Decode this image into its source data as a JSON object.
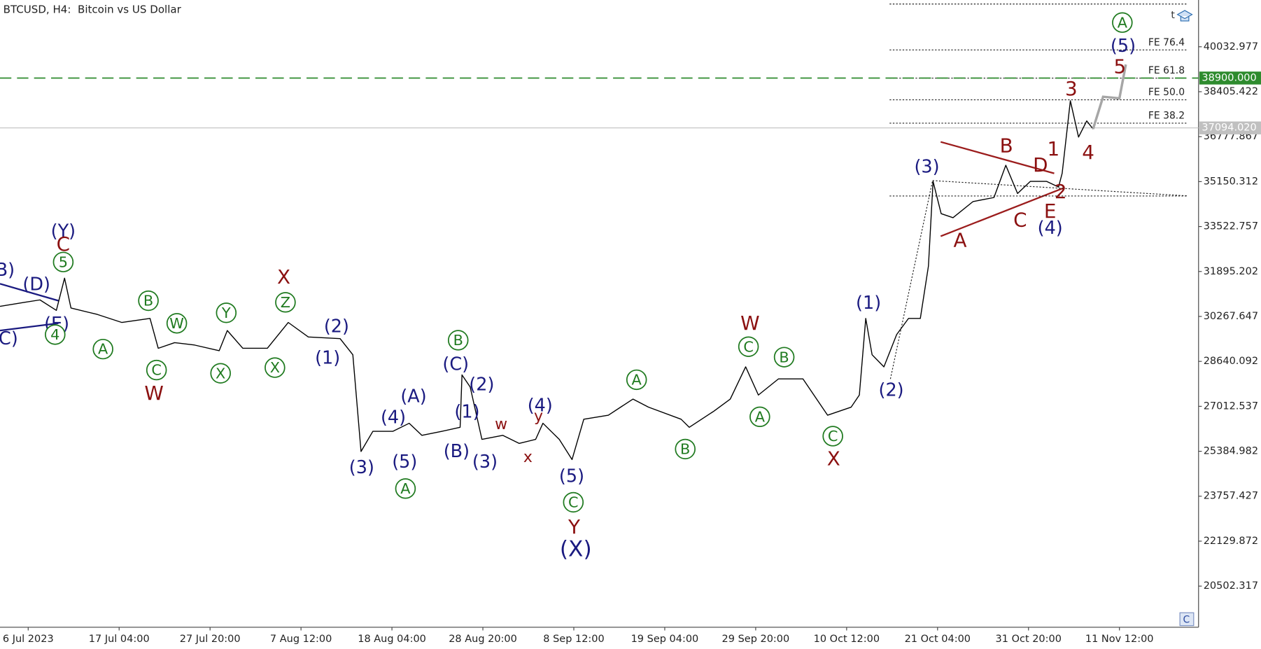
{
  "chart_data": {
    "type": "line",
    "title": "BTCUSD, H4:  Bitcoin vs US Dollar",
    "xlim": [
      -0.31,
      12.87
    ],
    "xticks": [
      {
        "value": 0,
        "label": "6 Jul 2023"
      },
      {
        "value": 1,
        "label": "17 Jul 04:00"
      },
      {
        "value": 2,
        "label": "27 Jul 20:00"
      },
      {
        "value": 3,
        "label": "7 Aug 12:00"
      },
      {
        "value": 4,
        "label": "18 Aug 04:00"
      },
      {
        "value": 5,
        "label": "28 Aug 20:00"
      },
      {
        "value": 6,
        "label": "8 Sep 12:00"
      },
      {
        "value": 7,
        "label": "19 Sep 04:00"
      },
      {
        "value": 8,
        "label": "29 Sep 20:00"
      },
      {
        "value": 9,
        "label": "10 Oct 12:00"
      },
      {
        "value": 10,
        "label": "21 Oct 04:00"
      },
      {
        "value": 11,
        "label": "31 Oct 20:00"
      },
      {
        "value": 12,
        "label": "11 Nov 12:00"
      }
    ],
    "ylim": [
      19013,
      41726
    ],
    "yticks": [
      40032.977,
      38405.422,
      36777.867,
      35150.312,
      33522.757,
      31895.202,
      30267.647,
      28640.092,
      27012.537,
      25384.982,
      23757.427,
      22129.872,
      20502.317
    ],
    "series": [
      {
        "color": "#000000",
        "x": [
          -0.31,
          -0.04,
          0.13,
          0.31,
          0.4,
          0.47,
          0.76,
          1.03,
          1.34,
          1.43,
          1.61,
          1.83,
          2.1,
          2.19,
          2.36,
          2.63,
          2.86,
          3.08,
          3.43,
          3.57,
          3.66,
          3.79,
          4.01,
          4.19,
          4.33,
          4.55,
          4.75,
          4.77,
          4.86,
          4.99,
          5.22,
          5.4,
          5.58,
          5.66,
          5.84,
          5.98,
          6.11,
          6.38,
          6.65,
          6.82,
          7.18,
          7.27,
          7.54,
          7.72,
          7.89,
          8.03,
          8.25,
          8.52,
          8.79,
          9.05,
          9.14,
          9.21,
          9.28,
          9.41,
          9.55,
          9.68,
          9.81,
          9.9,
          9.95,
          10.04,
          10.17,
          10.39,
          10.62,
          10.75,
          10.88,
          11.02,
          11.2,
          11.33,
          11.37,
          11.46,
          11.55,
          11.64,
          11.71
        ],
        "values": [
          30633,
          30778,
          30866,
          30487,
          31654,
          30574,
          30341,
          30049,
          30195,
          29114,
          29319,
          29231,
          29027,
          29757,
          29114,
          29114,
          30049,
          29523,
          29465,
          28881,
          25378,
          26107,
          26107,
          26399,
          25961,
          26107,
          26253,
          28151,
          27713,
          25816,
          25961,
          25670,
          25816,
          26399,
          25816,
          25086,
          26545,
          26691,
          27275,
          26983,
          26545,
          26253,
          26837,
          27275,
          28443,
          27421,
          28005,
          28005,
          26691,
          26983,
          27421,
          30195,
          28881,
          28443,
          29611,
          30195,
          30195,
          32092,
          35158,
          33990,
          33844,
          34428,
          34574,
          35741,
          34720,
          35158,
          35158,
          34953,
          35450,
          38077,
          36763,
          37347,
          37055
        ]
      }
    ],
    "projection": {
      "color": "#a6a6a6",
      "x": [
        11.71,
        11.82,
        12.0,
        12.07
      ],
      "values": [
        37055,
        38223,
        38165,
        39391
      ]
    },
    "price_lines": [
      {
        "value": 38900,
        "label": "38900.000",
        "color": "#2e8b2e",
        "style": "dashed"
      },
      {
        "value": 37094.02,
        "label": "37094.020",
        "color": "#c0c0c0",
        "style": "solid"
      }
    ],
    "fe_levels": [
      {
        "label": "FE 76.4",
        "value": 39917
      },
      {
        "label": "FE 61.8",
        "value": 38898
      },
      {
        "label": "FE 50.0",
        "value": 38113
      },
      {
        "label": "FE 38.2",
        "value": 37266
      }
    ],
    "fe_extra": [
      41580,
      34630
    ],
    "annotations": [
      {
        "text": "(Y)",
        "color": "#1a1a80"
      },
      {
        "text": "C",
        "color": "#8b1010"
      },
      {
        "text": "5",
        "color": "#1f7a1f",
        "circled": true
      },
      {
        "text": "(D)",
        "color": "#1a1a80"
      },
      {
        "text": "(E)",
        "color": "#1a1a80"
      },
      {
        "text": "4",
        "color": "#1f7a1f",
        "circled": true
      },
      {
        "text": "(C)",
        "color": "#1a1a80"
      },
      {
        "text": "(B)",
        "color": "#1a1a80"
      },
      {
        "text": "A",
        "color": "#1f7a1f",
        "circled": true
      },
      {
        "text": "B",
        "color": "#1f7a1f",
        "circled": true
      },
      {
        "text": "C",
        "color": "#1f7a1f",
        "circled": true
      },
      {
        "text": "W",
        "color": "#8b1010"
      },
      {
        "text": "W",
        "color": "#1f7a1f",
        "circled": true
      },
      {
        "text": "Y",
        "color": "#1f7a1f",
        "circled": true
      },
      {
        "text": "X",
        "color": "#1f7a1f",
        "circled": true
      },
      {
        "text": "X",
        "color": "#8b1010"
      },
      {
        "text": "Z",
        "color": "#1f7a1f",
        "circled": true
      },
      {
        "text": "X",
        "color": "#1f7a1f",
        "circled": true
      },
      {
        "text": "(2)",
        "color": "#1a1a80"
      },
      {
        "text": "(1)",
        "color": "#1a1a80"
      },
      {
        "text": "(3)",
        "color": "#1a1a80"
      },
      {
        "text": "(4)",
        "color": "#1a1a80"
      },
      {
        "text": "(A)",
        "color": "#1a1a80"
      },
      {
        "text": "(5)",
        "color": "#1a1a80"
      },
      {
        "text": "A",
        "color": "#1f7a1f",
        "circled": true
      },
      {
        "text": "B",
        "color": "#1f7a1f",
        "circled": true
      },
      {
        "text": "(C)",
        "color": "#1a1a80"
      },
      {
        "text": "(2)",
        "color": "#1a1a80"
      },
      {
        "text": "(1)",
        "color": "#1a1a80"
      },
      {
        "text": "(B)",
        "color": "#1a1a80"
      },
      {
        "text": "(3)",
        "color": "#1a1a80"
      },
      {
        "text": "w",
        "color": "#8b1010"
      },
      {
        "text": "(4)",
        "color": "#1a1a80"
      },
      {
        "text": "y",
        "color": "#8b1010"
      },
      {
        "text": "x",
        "color": "#8b1010"
      },
      {
        "text": "(5)",
        "color": "#1a1a80"
      },
      {
        "text": "C",
        "color": "#1f7a1f",
        "circled": true
      },
      {
        "text": "Y",
        "color": "#8b1010"
      },
      {
        "text": "(X)",
        "color": "#1a1a80"
      },
      {
        "text": "A",
        "color": "#1f7a1f",
        "circled": true
      },
      {
        "text": "B",
        "color": "#1f7a1f",
        "circled": true
      },
      {
        "text": "W",
        "color": "#8b1010"
      },
      {
        "text": "C",
        "color": "#1f7a1f",
        "circled": true
      },
      {
        "text": "A",
        "color": "#1f7a1f",
        "circled": true
      },
      {
        "text": "B",
        "color": "#1f7a1f",
        "circled": true
      },
      {
        "text": "C",
        "color": "#1f7a1f",
        "circled": true
      },
      {
        "text": "X",
        "color": "#8b1010"
      },
      {
        "text": "(1)",
        "color": "#1a1a80"
      },
      {
        "text": "(2)",
        "color": "#1a1a80"
      },
      {
        "text": "(3)",
        "color": "#1a1a80"
      },
      {
        "text": "A",
        "color": "#8b1010"
      },
      {
        "text": "B",
        "color": "#8b1010"
      },
      {
        "text": "C",
        "color": "#8b1010"
      },
      {
        "text": "D",
        "color": "#8b1010"
      },
      {
        "text": "1",
        "color": "#8b1010"
      },
      {
        "text": "2",
        "color": "#8b1010"
      },
      {
        "text": "E",
        "color": "#8b1010"
      },
      {
        "text": "(4)",
        "color": "#1a1a80"
      },
      {
        "text": "3",
        "color": "#8b1010"
      },
      {
        "text": "4",
        "color": "#8b1010"
      },
      {
        "text": "5",
        "color": "#8b1010"
      },
      {
        "text": "(5)",
        "color": "#1a1a80"
      },
      {
        "text": "A",
        "color": "#1f7a1f",
        "circled": true
      }
    ]
  }
}
